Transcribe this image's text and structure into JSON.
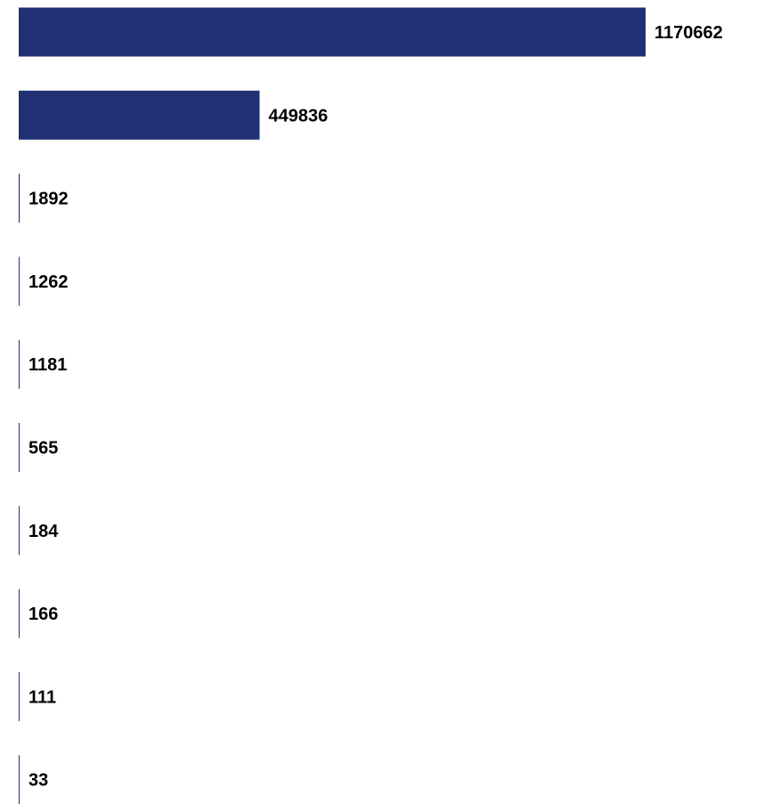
{
  "chart_data": {
    "type": "bar",
    "orientation": "horizontal",
    "title": "",
    "xlabel": "",
    "ylabel": "",
    "categories": [],
    "values": [
      1170662,
      449836,
      1892,
      1262,
      1181,
      565,
      184,
      166,
      111,
      33
    ],
    "labels": [
      "1170662",
      "449836",
      "1892",
      "1262",
      "1181",
      "565",
      "184",
      "166",
      "111",
      "33"
    ],
    "xlim": [
      0,
      1170662
    ],
    "grid": false,
    "legend": "none",
    "bar_color": "#223075",
    "label_color": "#000000"
  }
}
